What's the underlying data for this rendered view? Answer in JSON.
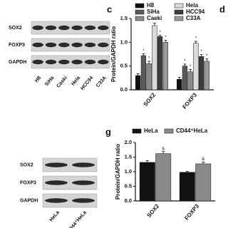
{
  "chart_data": [
    {
      "type": "bar",
      "panel": "c",
      "ylabel": "Protein/GAPDH ratio",
      "categories": [
        "SOX2",
        "FOXP3"
      ],
      "series": [
        {
          "name": "H8",
          "color": "#111111",
          "values": [
            0.3,
            0.22
          ],
          "errors": [
            0.04,
            0.04
          ],
          "annotations": [
            null,
            null
          ]
        },
        {
          "name": "SiHa",
          "color": "#5a5a5a",
          "values": [
            0.72,
            0.5
          ],
          "errors": [
            0.04,
            0.04
          ],
          "annotations": [
            "*",
            "*"
          ]
        },
        {
          "name": "Caski",
          "color": "#8a8a8a",
          "values": [
            0.55,
            0.38
          ],
          "errors": [
            0.05,
            0.05
          ],
          "annotations": [
            "*",
            "*"
          ]
        },
        {
          "name": "Hela",
          "color": "#d9d9d9",
          "values": [
            1.35,
            0.98
          ],
          "errors": [
            0.05,
            0.04
          ],
          "annotations": [
            "*",
            "*"
          ]
        },
        {
          "name": "HCC94",
          "color": "#3d3d3d",
          "values": [
            1.12,
            0.7
          ],
          "errors": [
            0.03,
            0.04
          ],
          "annotations": [
            "*",
            "*"
          ]
        },
        {
          "name": "C33A",
          "color": "#9a9a9a",
          "values": [
            1.0,
            0.6
          ],
          "errors": [
            0.04,
            0.05
          ],
          "annotations": [
            "*",
            "*"
          ]
        }
      ],
      "ylim": [
        0,
        1.5
      ],
      "yticks": [
        {
          "value": 0,
          "label": "0.0"
        },
        0.5,
        {
          "value": 1,
          "label": "1.0"
        },
        1.5
      ]
    },
    {
      "type": "bar",
      "panel": "g",
      "ylabel": "Protein/GAPDH ratio",
      "categories": [
        "SOX2",
        "FOXP3"
      ],
      "series": [
        {
          "name": "HeLa",
          "color": "#111111",
          "values": [
            1.32,
            0.98
          ],
          "errors": [
            0.06,
            0.03
          ],
          "annotations": [
            null,
            null
          ]
        },
        {
          "name": "CD44⁺HeLa",
          "color": "#8a8a8a",
          "values": [
            1.62,
            1.27
          ],
          "errors": [
            0.07,
            0.06
          ],
          "annotations": [
            "&",
            "&"
          ]
        }
      ],
      "ylim": [
        0,
        2
      ],
      "yticks": [
        {
          "value": 0,
          "label": "0.0"
        },
        0.5,
        {
          "value": 1,
          "label": "1.0"
        },
        1.5,
        {
          "value": 2,
          "label": "2.0"
        }
      ]
    }
  ],
  "panel_d": "d",
  "blots": [
    {
      "rows": [
        "SOX2",
        "FOXP3",
        "GAPDH"
      ],
      "lanes": [
        "H8",
        "SiHa",
        "Caski",
        "Hela",
        "HCC94",
        "C33A"
      ]
    },
    {
      "rows": [
        "SOX2",
        "FOXP3",
        "GAPDH"
      ],
      "lanes": [
        "HeLa",
        "CD44⁺HeLa"
      ]
    }
  ]
}
